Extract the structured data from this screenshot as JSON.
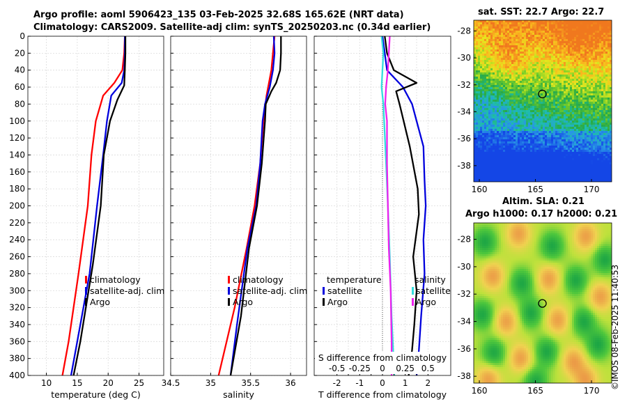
{
  "header": {
    "line1": "Argo profile: aoml 5906423_135 03-Feb-2025 32.68S 165.62E (NRT data)",
    "line2": "Climatology: CARS2009. Satellite-adj clim: synTS_20250203.nc (0.34d earlier)"
  },
  "timestamp": "©IMOS 08-Feb-2025 11:40:53",
  "colors": {
    "red": "#ff0000",
    "blue": "#0000dd",
    "black": "#000000",
    "cyan": "#33dddd",
    "magenta": "#ee22ee"
  },
  "chart_data": [
    {
      "type": "line",
      "id": "temperature",
      "xlabel": "temperature (deg C)",
      "ylabel": "",
      "xlim": [
        7,
        29
      ],
      "ylim": [
        0,
        400
      ],
      "xticks": [
        10,
        15,
        20,
        25
      ],
      "xtick_labels": [
        "10",
        "15",
        "20",
        "25"
      ],
      "yticks": [
        0,
        20,
        40,
        60,
        80,
        100,
        120,
        140,
        160,
        180,
        200,
        220,
        240,
        260,
        280,
        300,
        320,
        340,
        360,
        380,
        400
      ],
      "legend": [
        "climatology",
        "satellite-adj. clim",
        "Argo"
      ],
      "legend_position": "lower-right",
      "series": [
        {
          "name": "climatology",
          "color": "#ff0000",
          "x": [
            22.7,
            22.6,
            22.3,
            21.0,
            19.2,
            18.0,
            17.3,
            16.7,
            15.2,
            13.6,
            12.6
          ],
          "y": [
            0,
            20,
            40,
            55,
            70,
            100,
            140,
            200,
            280,
            360,
            400
          ]
        },
        {
          "name": "satellite-adj. clim",
          "color": "#0000dd",
          "x": [
            22.7,
            22.7,
            22.6,
            22.2,
            20.5,
            19.8,
            19.2,
            18.2,
            17.0,
            15.0,
            14.0
          ],
          "y": [
            0,
            20,
            40,
            55,
            70,
            100,
            140,
            200,
            280,
            360,
            400
          ]
        },
        {
          "name": "Argo",
          "color": "#000000",
          "x": [
            22.8,
            22.8,
            22.7,
            22.6,
            21.5,
            20.3,
            19.3,
            18.8,
            17.5,
            15.5,
            14.4
          ],
          "y": [
            0,
            20,
            40,
            58,
            75,
            100,
            140,
            200,
            270,
            360,
            400
          ]
        }
      ]
    },
    {
      "type": "line",
      "id": "salinity",
      "xlabel": "salinity",
      "ylabel": "",
      "xlim": [
        34.5,
        36.2
      ],
      "ylim": [
        0,
        400
      ],
      "xticks": [
        34.5,
        35,
        35.5,
        36
      ],
      "xtick_labels": [
        "34.5",
        "35",
        "35.5",
        "36"
      ],
      "yticks": [
        0,
        20,
        40,
        60,
        80,
        100,
        120,
        140,
        160,
        180,
        200,
        220,
        240,
        260,
        280,
        300,
        320,
        340,
        360,
        380,
        400
      ],
      "legend": [
        "climatology",
        "satellite-adj. clim",
        "Argo"
      ],
      "legend_position": "lower-right",
      "series": [
        {
          "name": "climatology",
          "color": "#ff0000",
          "x": [
            35.8,
            35.78,
            35.76,
            35.7,
            35.66,
            35.62,
            35.55,
            35.45,
            35.3,
            35.1
          ],
          "y": [
            0,
            20,
            40,
            70,
            100,
            150,
            200,
            250,
            320,
            400
          ]
        },
        {
          "name": "satellite-adj. clim",
          "color": "#0000dd",
          "x": [
            35.79,
            35.8,
            35.78,
            35.74,
            35.68,
            35.65,
            35.62,
            35.57,
            35.46,
            35.33,
            35.25
          ],
          "y": [
            0,
            20,
            40,
            60,
            80,
            100,
            150,
            200,
            250,
            340,
            400
          ]
        },
        {
          "name": "Argo",
          "color": "#000000",
          "x": [
            35.88,
            35.88,
            35.87,
            35.82,
            35.76,
            35.69,
            35.68,
            35.64,
            35.58,
            35.48,
            35.38,
            35.25
          ],
          "y": [
            0,
            20,
            40,
            55,
            65,
            80,
            100,
            150,
            200,
            250,
            330,
            400
          ]
        }
      ]
    },
    {
      "type": "line",
      "id": "difference",
      "xlabel": "T difference from climatology",
      "x2label": "S difference from climatology",
      "xlim": [
        -3,
        3
      ],
      "ylim": [
        0,
        400
      ],
      "xticks": [
        -2,
        -1.5,
        -1,
        -0.5,
        0,
        0.5,
        1,
        1.5,
        2
      ],
      "xtick_labels": [
        "-2",
        "",
        "-1",
        "",
        "0",
        "",
        "1",
        "",
        "2"
      ],
      "x2lim": [
        -0.75,
        0.75
      ],
      "x2ticks": [
        -0.5,
        -0.25,
        0,
        0.25,
        0.5
      ],
      "x2tick_labels": [
        "-0.5",
        "-0.25",
        "0",
        "0.25",
        "0.5"
      ],
      "yticks": [
        0,
        20,
        40,
        60,
        80,
        100,
        120,
        140,
        160,
        180,
        200,
        220,
        240,
        260,
        280,
        300,
        320,
        340,
        360,
        380,
        400
      ],
      "legend_left": [
        "temperature",
        "satellite",
        "Argo"
      ],
      "legend_right": [
        "salinity",
        "satellite",
        "Argo"
      ],
      "legend_position": "lower-middle",
      "series": [
        {
          "name": "temperature satellite",
          "color": "#0000dd",
          "x": [
            0,
            0.1,
            0.2,
            0.9,
            1.3,
            1.5,
            1.8,
            1.85,
            1.9,
            1.8,
            1.85,
            1.7,
            1.6,
            1.5
          ],
          "y": [
            0,
            20,
            40,
            60,
            80,
            100,
            130,
            170,
            200,
            240,
            280,
            330,
            370,
            400
          ]
        },
        {
          "name": "temperature Argo",
          "color": "#000000",
          "x": [
            0.1,
            0.2,
            0.5,
            1.5,
            0.6,
            0.75,
            1.2,
            1.55,
            1.6,
            1.35,
            1.5,
            1.4,
            1.3,
            1.15
          ],
          "y": [
            0,
            20,
            40,
            55,
            65,
            80,
            130,
            180,
            210,
            260,
            300,
            340,
            370,
            400
          ]
        },
        {
          "name": "salinity satellite",
          "color": "#33dddd",
          "x": [
            -0.01,
            0.01,
            0.0,
            -0.01,
            0.01,
            0.04,
            0.06,
            0.08,
            0.1,
            0.13
          ],
          "y": [
            0,
            20,
            40,
            60,
            80,
            150,
            200,
            260,
            330,
            400
          ]
        },
        {
          "name": "salinity Argo",
          "color": "#ee22ee",
          "x": [
            0.08,
            0.07,
            0.06,
            0.04,
            0.03,
            0.05,
            0.05,
            0.06,
            0.07,
            0.09,
            0.1,
            0.1
          ],
          "y": [
            0,
            20,
            40,
            60,
            80,
            100,
            150,
            200,
            250,
            300,
            360,
            400
          ]
        }
      ]
    },
    {
      "type": "heatmap",
      "id": "sst-map",
      "title": "sat. SST: 22.7 Argo: 22.7",
      "xlim": [
        159.5,
        171.8
      ],
      "ylim": [
        -39.2,
        -27.2
      ],
      "xticks": [
        160,
        165,
        170
      ],
      "xtick_labels": [
        "160",
        "165",
        "170"
      ],
      "yticks": [
        -28,
        -30,
        -32,
        -34,
        -36,
        -38
      ],
      "ytick_labels": [
        "-28",
        "-30",
        "-32",
        "-34",
        "-36",
        "-38"
      ],
      "profile_marker": {
        "lon": 165.62,
        "lat": -32.68
      }
    },
    {
      "type": "heatmap",
      "id": "sla-map",
      "title1": "Altim. SLA: 0.21",
      "title2": "Argo h1000: 0.17 h2000: 0.21",
      "xlim": [
        159.5,
        171.8
      ],
      "ylim": [
        -38.5,
        -26.8
      ],
      "xticks": [
        160,
        165,
        170
      ],
      "xtick_labels": [
        "160",
        "165",
        "170"
      ],
      "yticks": [
        -28,
        -30,
        -32,
        -34,
        -36,
        -38
      ],
      "ytick_labels": [
        "-28",
        "-30",
        "-32",
        "-34",
        "-36",
        "-38"
      ],
      "profile_marker": {
        "lon": 165.62,
        "lat": -32.68
      }
    }
  ]
}
